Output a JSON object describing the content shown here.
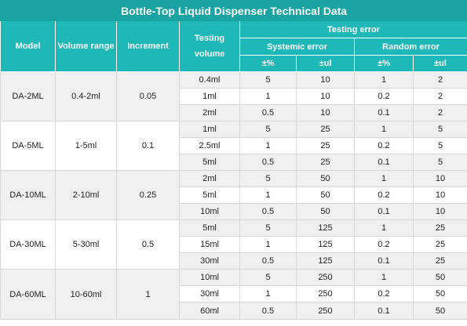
{
  "title": "Bottle-Top Liquid Dispenser Technical Data",
  "headers": {
    "model": "Model",
    "volume_range": "Volume range",
    "increment": "Increment",
    "testing_volume": "Testing volume",
    "testing_error": "Testing error",
    "systemic_error": "Systemic error",
    "random_error": "Random error",
    "pct": "±%",
    "ul": "±ul"
  },
  "groups": [
    {
      "model": "DA-2ML",
      "volume_range": "0.4-2ml",
      "increment": "0.05",
      "rows": [
        {
          "volume": "0.4ml",
          "sys_pct": "5",
          "sys_ul": "10",
          "rand_pct": "1",
          "rand_ul": "2"
        },
        {
          "volume": "1ml",
          "sys_pct": "1",
          "sys_ul": "10",
          "rand_pct": "0.2",
          "rand_ul": "2"
        },
        {
          "volume": "2ml",
          "sys_pct": "0.5",
          "sys_ul": "10",
          "rand_pct": "0.1",
          "rand_ul": "2"
        }
      ]
    },
    {
      "model": "DA-5ML",
      "volume_range": "1-5ml",
      "increment": "0.1",
      "rows": [
        {
          "volume": "1ml",
          "sys_pct": "5",
          "sys_ul": "25",
          "rand_pct": "1",
          "rand_ul": "5"
        },
        {
          "volume": "2.5ml",
          "sys_pct": "1",
          "sys_ul": "25",
          "rand_pct": "0.2",
          "rand_ul": "5"
        },
        {
          "volume": "5ml",
          "sys_pct": "0.5",
          "sys_ul": "25",
          "rand_pct": "0.1",
          "rand_ul": "5"
        }
      ]
    },
    {
      "model": "DA-10ML",
      "volume_range": "2-10ml",
      "increment": "0.25",
      "rows": [
        {
          "volume": "2ml",
          "sys_pct": "5",
          "sys_ul": "50",
          "rand_pct": "1",
          "rand_ul": "10"
        },
        {
          "volume": "5ml",
          "sys_pct": "1",
          "sys_ul": "50",
          "rand_pct": "0.2",
          "rand_ul": "10"
        },
        {
          "volume": "10ml",
          "sys_pct": "0.5",
          "sys_ul": "50",
          "rand_pct": "0.1",
          "rand_ul": "10"
        }
      ]
    },
    {
      "model": "DA-30ML",
      "volume_range": "5-30ml",
      "increment": "0.5",
      "rows": [
        {
          "volume": "5ml",
          "sys_pct": "5",
          "sys_ul": "125",
          "rand_pct": "1",
          "rand_ul": "25"
        },
        {
          "volume": "15ml",
          "sys_pct": "1",
          "sys_ul": "125",
          "rand_pct": "0.2",
          "rand_ul": "25"
        },
        {
          "volume": "30ml",
          "sys_pct": "0.5",
          "sys_ul": "125",
          "rand_pct": "0.1",
          "rand_ul": "25"
        }
      ]
    },
    {
      "model": "DA-60ML",
      "volume_range": "10-60ml",
      "increment": "1",
      "rows": [
        {
          "volume": "10ml",
          "sys_pct": "5",
          "sys_ul": "250",
          "rand_pct": "1",
          "rand_ul": "50"
        },
        {
          "volume": "30ml",
          "sys_pct": "1",
          "sys_ul": "250",
          "rand_pct": "0.2",
          "rand_ul": "50"
        },
        {
          "volume": "60ml",
          "sys_pct": "0.5",
          "sys_ul": "250",
          "rand_pct": "0.1",
          "rand_ul": "50"
        }
      ]
    }
  ],
  "colors": {
    "title_bg": "#1aa3a3",
    "header_bg": "#1fb8b8",
    "row_grey": "#f0f0f0",
    "row_white": "#ffffff"
  }
}
